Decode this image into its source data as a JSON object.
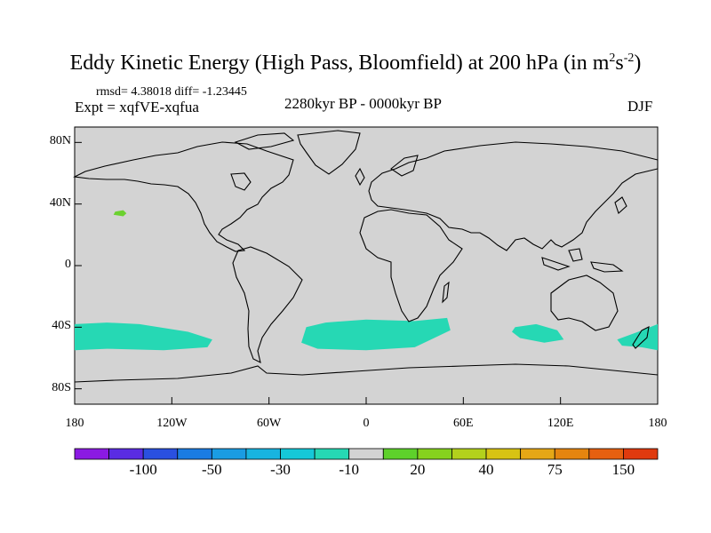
{
  "title": {
    "text": "Eddy Kinetic Energy (High Pass, Bloomfield) at 200 hPa (in m",
    "sup1": "2",
    "mid": "s",
    "sup2": "-2",
    "end": ")"
  },
  "stats": "rmsd= 4.38018 diff= -1.23445",
  "expt": "Expt = xqfVE-xqfua",
  "period": "2280kyr BP - 0000kyr BP",
  "season": "DJF",
  "map": {
    "background_color": "#d3d3d3",
    "lat_range": [
      -90,
      90
    ],
    "lon_range": [
      -180,
      180
    ],
    "y_ticks": [
      {
        "lat": 80,
        "label": "80N"
      },
      {
        "lat": 40,
        "label": "40N"
      },
      {
        "lat": 0,
        "label": "0"
      },
      {
        "lat": -40,
        "label": "40S"
      },
      {
        "lat": -80,
        "label": "80S"
      }
    ],
    "x_ticks": [
      {
        "lon": -180,
        "label": "180"
      },
      {
        "lon": -120,
        "label": "120W"
      },
      {
        "lon": -60,
        "label": "60W"
      },
      {
        "lon": 0,
        "label": "0"
      },
      {
        "lon": 60,
        "label": "60E"
      },
      {
        "lon": 120,
        "label": "120E"
      },
      {
        "lon": 180,
        "label": "180"
      }
    ],
    "anomaly_regions": [
      {
        "name": "north-pacific-positive",
        "color": "#6bd12f",
        "points": [
          [
            -155,
            35
          ],
          [
            -150,
            36
          ],
          [
            -148,
            34
          ],
          [
            -150,
            32
          ],
          [
            -156,
            33
          ]
        ]
      },
      {
        "name": "south-pacific-negative-west",
        "color": "#26d8b4",
        "points": [
          [
            -180,
            -38
          ],
          [
            -160,
            -37
          ],
          [
            -140,
            -38
          ],
          [
            -110,
            -43
          ],
          [
            -95,
            -48
          ],
          [
            -98,
            -53
          ],
          [
            -125,
            -55
          ],
          [
            -160,
            -54
          ],
          [
            -180,
            -55
          ]
        ]
      },
      {
        "name": "south-atlantic-negative",
        "color": "#26d8b4",
        "points": [
          [
            -37,
            -40
          ],
          [
            -25,
            -37
          ],
          [
            0,
            -35
          ],
          [
            30,
            -36
          ],
          [
            50,
            -34
          ],
          [
            52,
            -42
          ],
          [
            30,
            -53
          ],
          [
            0,
            -55
          ],
          [
            -30,
            -54
          ],
          [
            -40,
            -50
          ]
        ]
      },
      {
        "name": "south-indian-negative",
        "color": "#26d8b4",
        "points": [
          [
            92,
            -40
          ],
          [
            105,
            -38
          ],
          [
            118,
            -42
          ],
          [
            122,
            -48
          ],
          [
            110,
            -50
          ],
          [
            95,
            -47
          ],
          [
            90,
            -43
          ]
        ]
      },
      {
        "name": "south-pacific-negative-east",
        "color": "#26d8b4",
        "points": [
          [
            155,
            -48
          ],
          [
            168,
            -43
          ],
          [
            180,
            -38
          ],
          [
            180,
            -55
          ],
          [
            170,
            -53
          ],
          [
            158,
            -52
          ]
        ]
      }
    ]
  },
  "colorbar": {
    "colors": [
      "#8b1ae3",
      "#5a2ce3",
      "#2a50e0",
      "#1a7ce3",
      "#1a9ce3",
      "#18b4e0",
      "#15c8d8",
      "#26d8b4",
      "#d3d3d3",
      "#5ed12b",
      "#86d21e",
      "#b3d11c",
      "#d7c313",
      "#e5a716",
      "#e5850f",
      "#e66010",
      "#e03a0e"
    ],
    "labels": [
      {
        "index": 1,
        "text": "-100"
      },
      {
        "index": 3,
        "text": "-50"
      },
      {
        "index": 5,
        "text": "-30"
      },
      {
        "index": 7,
        "text": "-10"
      },
      {
        "index": 9,
        "text": "20"
      },
      {
        "index": 11,
        "text": "40"
      },
      {
        "index": 13,
        "text": "75"
      },
      {
        "index": 15,
        "text": "150"
      }
    ]
  }
}
